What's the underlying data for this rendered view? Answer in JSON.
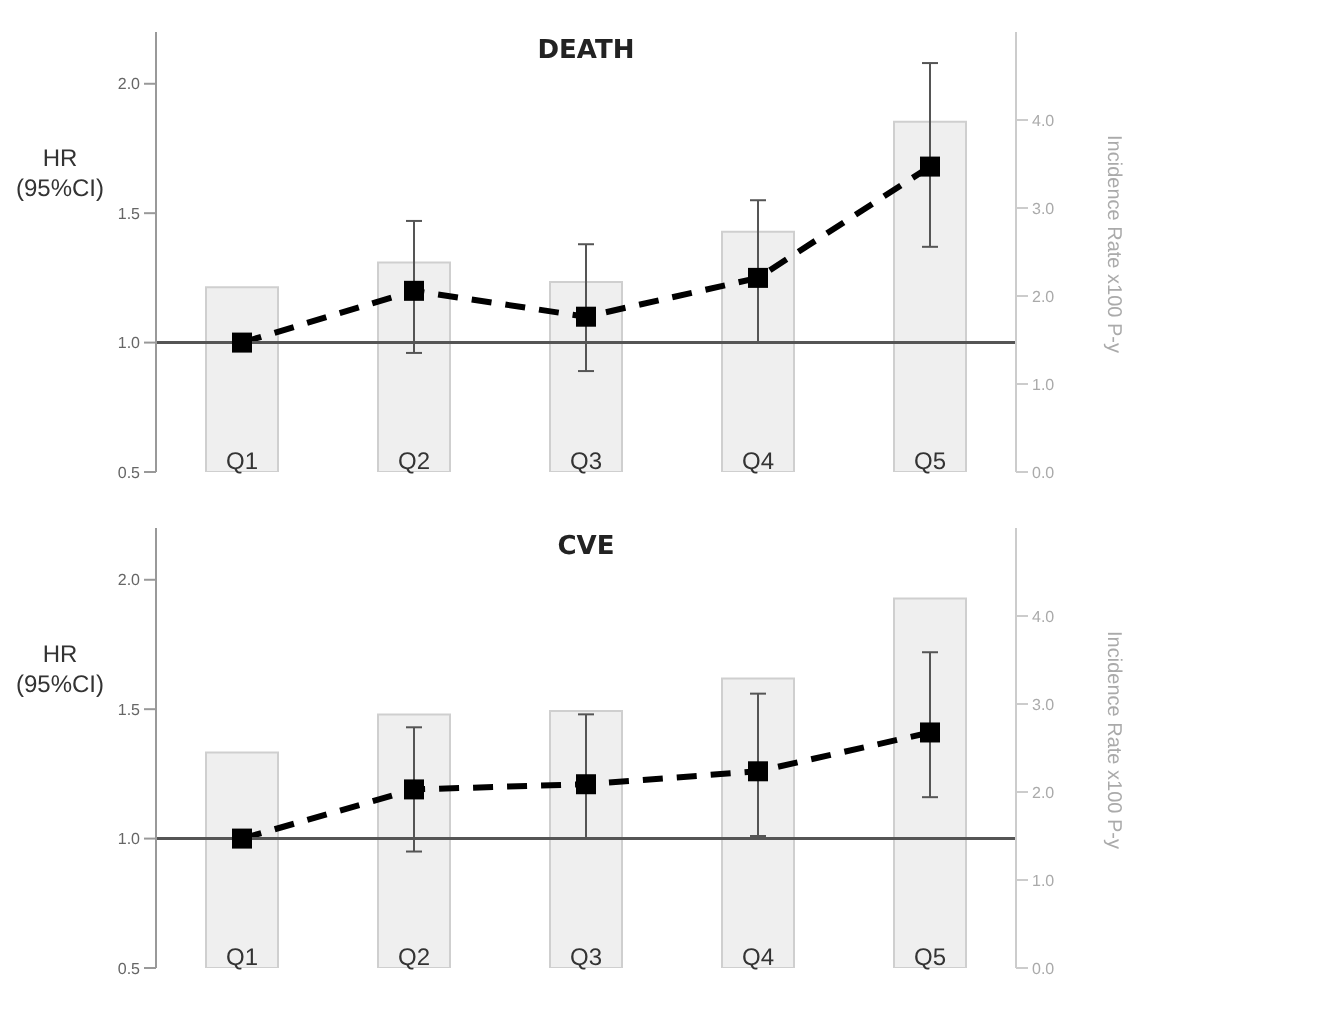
{
  "chart_data": [
    {
      "type": "bar",
      "title": "DEATH",
      "ylabel": "HR (95%CI)",
      "y2label": "Incidence Rate x100 P-y",
      "categories": [
        "Q1",
        "Q2",
        "Q3",
        "Q4",
        "Q5"
      ],
      "series": [
        {
          "axis": "y2",
          "color": "#efefef",
          "values": [
            2.1,
            2.38,
            2.16,
            2.73,
            3.98
          ]
        },
        {
          "type": "line",
          "color": "#000000",
          "values": [
            1.0,
            1.2,
            1.1,
            1.25,
            1.68
          ],
          "errors": [
            null,
            [
              0.96,
              1.47
            ],
            [
              0.89,
              1.38
            ],
            [
              1.0,
              1.55
            ],
            [
              1.37,
              2.08
            ]
          ]
        }
      ],
      "ylim": [
        0.5,
        2.2
      ],
      "yticks": [
        {
          "value": 0.5,
          "label": "0.5"
        },
        {
          "value": 1,
          "label": "1.0"
        },
        {
          "value": 1.5,
          "label": "1.5"
        },
        {
          "value": 2,
          "label": "2.0"
        }
      ],
      "y2lim": [
        0,
        5
      ],
      "y2ticks": [
        {
          "value": 0,
          "label": "0.0"
        },
        {
          "value": 1,
          "label": "1.0"
        },
        {
          "value": 2,
          "label": "2.0"
        },
        {
          "value": 3,
          "label": "3.0"
        },
        {
          "value": 4,
          "label": "4.0"
        }
      ],
      "ref_lines": [
        {
          "axis": "y",
          "value": 1,
          "color": "#555555"
        }
      ],
      "marker": "square",
      "line_style": "dashed",
      "grid": false,
      "legend": false
    },
    {
      "type": "bar",
      "title": "CVE",
      "ylabel": "HR (95%CI)",
      "y2label": "Incidence Rate x100 P-y",
      "categories": [
        "Q1",
        "Q2",
        "Q3",
        "Q4",
        "Q5"
      ],
      "series": [
        {
          "axis": "y2",
          "color": "#efefef",
          "values": [
            2.45,
            2.88,
            2.92,
            3.29,
            4.2
          ]
        },
        {
          "type": "line",
          "color": "#000000",
          "values": [
            1.0,
            1.19,
            1.21,
            1.26,
            1.41
          ],
          "errors": [
            null,
            [
              0.95,
              1.43
            ],
            [
              1.0,
              1.48
            ],
            [
              1.01,
              1.56
            ],
            [
              1.16,
              1.72
            ]
          ]
        }
      ],
      "ylim": [
        0.5,
        2.2
      ],
      "yticks": [
        {
          "value": 0.5,
          "label": "0.5"
        },
        {
          "value": 1,
          "label": "1.0"
        },
        {
          "value": 1.5,
          "label": "1.5"
        },
        {
          "value": 2,
          "label": "2.0"
        }
      ],
      "y2lim": [
        0,
        5
      ],
      "y2ticks": [
        {
          "value": 0,
          "label": "0.0"
        },
        {
          "value": 1,
          "label": "1.0"
        },
        {
          "value": 2,
          "label": "2.0"
        },
        {
          "value": 3,
          "label": "3.0"
        },
        {
          "value": 4,
          "label": "4.0"
        }
      ],
      "ref_lines": [
        {
          "axis": "y",
          "value": 1,
          "color": "#555555"
        }
      ],
      "marker": "square",
      "line_style": "dashed",
      "grid": false,
      "legend": false
    }
  ]
}
